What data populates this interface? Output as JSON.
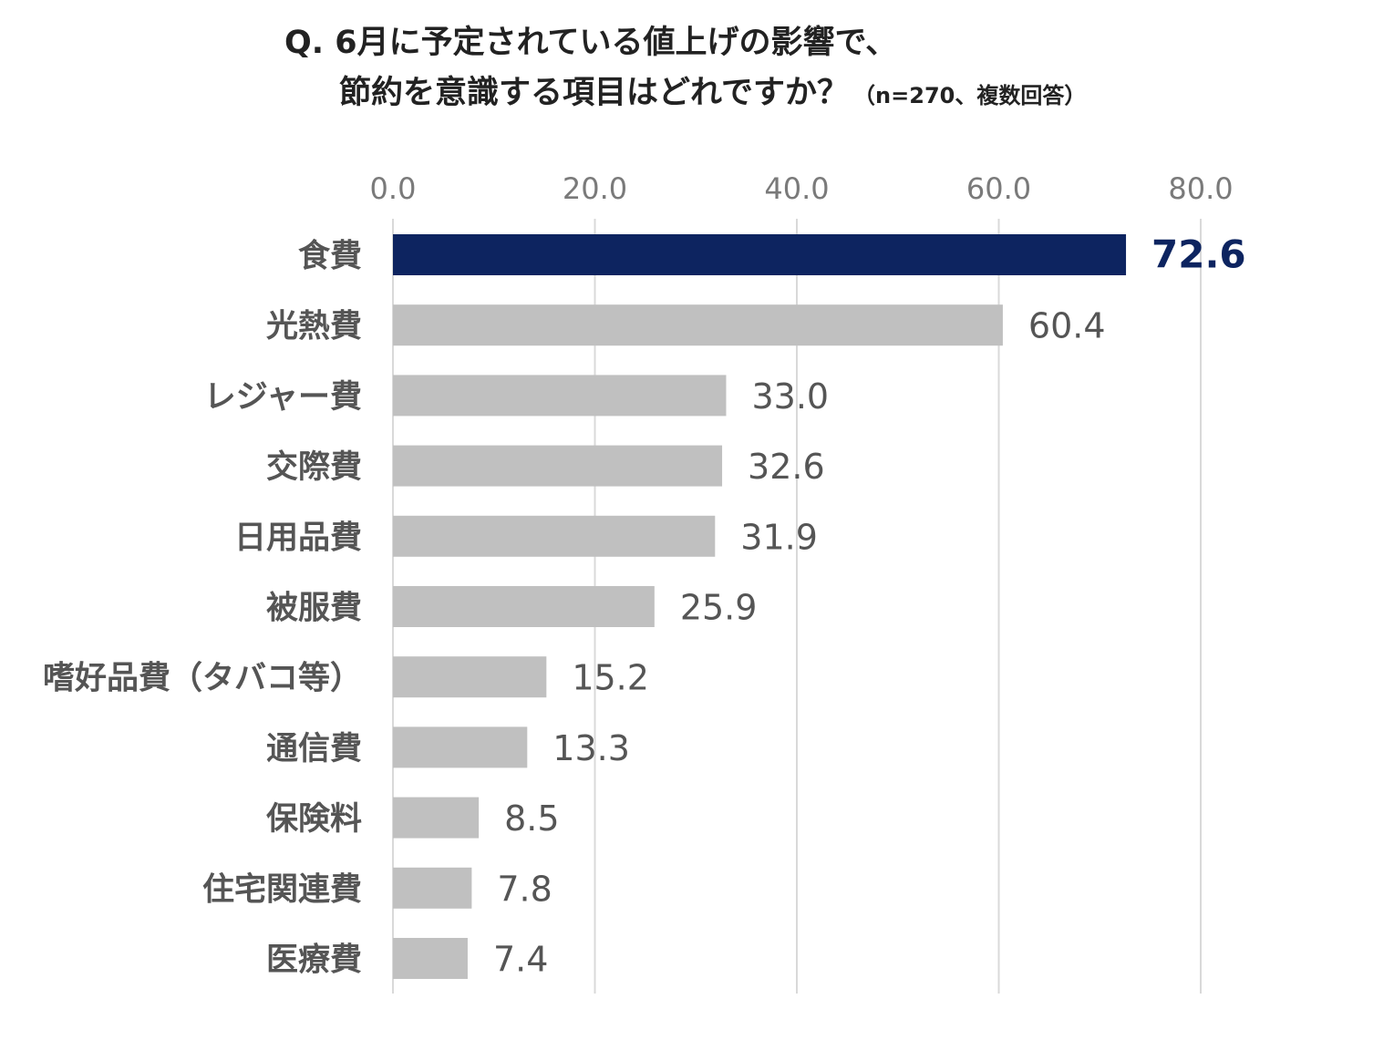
{
  "chart_data": {
    "type": "bar",
    "orientation": "horizontal",
    "title_line1": "Q. 6月に予定されている値上げの影響で、",
    "title_line2": "節約を意識する項目はどれですか？",
    "title_note": "（n=270、複数回答）",
    "xlim": [
      0,
      80
    ],
    "ticks": [
      "0.0",
      "20.0",
      "40.0",
      "60.0",
      "80.0"
    ],
    "tick_values": [
      0,
      20,
      40,
      60,
      80
    ],
    "grid": true,
    "categories": [
      "食費",
      "光熱費",
      "レジャー費",
      "交際費",
      "日用品費",
      "被服費",
      "嗜好品費（タバコ等）",
      "通信費",
      "保険料",
      "住宅関連費",
      "医療費"
    ],
    "values": [
      72.6,
      60.4,
      33.0,
      32.6,
      31.9,
      25.9,
      15.2,
      13.3,
      8.5,
      7.8,
      7.4
    ],
    "value_labels": [
      "72.6",
      "60.4",
      "33.0",
      "32.6",
      "31.9",
      "25.9",
      "15.2",
      "13.3",
      "8.5",
      "7.8",
      "7.4"
    ],
    "highlight_index": 0,
    "colors": {
      "highlight": "#0d2460",
      "bar": "#c0c0c0",
      "grid": "#d9d9d9"
    }
  }
}
